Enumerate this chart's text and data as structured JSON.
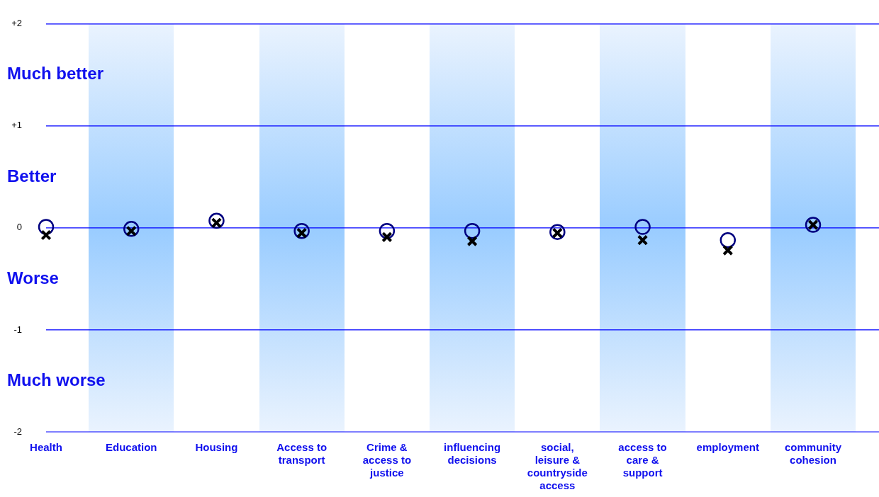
{
  "chart_data": {
    "type": "scatter",
    "categories": [
      "Health",
      "Education",
      "Housing",
      "Access to transport",
      "Crime & access to justice",
      "influencing decisions",
      "social, leisure & countryside access",
      "access to care & support",
      "employment",
      "community cohesion"
    ],
    "series": [
      {
        "color": "#000080",
        "marker": "circle",
        "values": [
          0.01,
          -0.01,
          0.07,
          -0.03,
          -0.03,
          -0.03,
          -0.04,
          0.01,
          -0.12,
          0.03
        ]
      },
      {
        "color": "#000000",
        "marker": "cross",
        "values": [
          -0.07,
          -0.03,
          0.05,
          -0.05,
          -0.09,
          -0.13,
          -0.05,
          -0.12,
          -0.22,
          0.03
        ]
      }
    ],
    "ylim": [
      -2,
      2
    ],
    "yticks": [
      -2,
      -1,
      0,
      {
        "value": 1,
        "label": "+1"
      },
      {
        "value": 2,
        "label": "+2"
      }
    ],
    "annotations": [
      "Much better",
      "Better",
      "Worse",
      "Much worse"
    ],
    "grid": "y",
    "legend": false
  }
}
